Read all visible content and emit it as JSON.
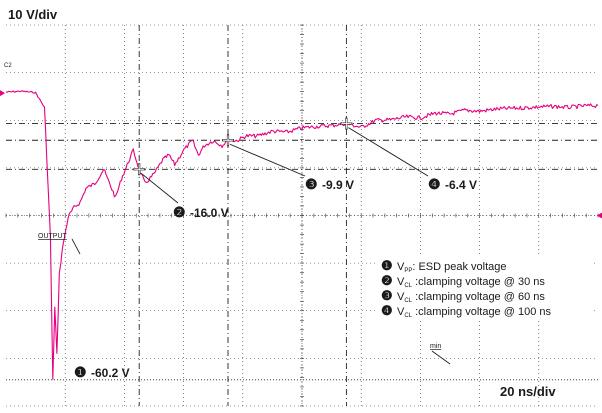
{
  "chart_data": {
    "type": "line",
    "title": "",
    "xlabel": "",
    "ylabel": "",
    "y_scale_label": "10 V/div",
    "x_scale_label": "20 ns/div",
    "channel_label": "C2",
    "output_label": "OUTPUT",
    "min_label": "min",
    "x_divisions": 10,
    "y_divisions": 8,
    "x_unit": "ns",
    "y_unit": "V",
    "xlim": [
      -15,
      185
    ],
    "ylim": [
      -65.7,
      14.3
    ],
    "grid": true,
    "series": [
      {
        "color": "#e6007e",
        "x": [
          -15,
          -10,
          -5,
          -2,
          0,
          0.8,
          1.5,
          2.2,
          3,
          4,
          6,
          8,
          10,
          12,
          15,
          18,
          20,
          22,
          24,
          26,
          28,
          30,
          32,
          35,
          38,
          40,
          42,
          45,
          48,
          50,
          52,
          55,
          58,
          60,
          63,
          66,
          70,
          75,
          80,
          85,
          90,
          95,
          100,
          105,
          110,
          115,
          120,
          125,
          130,
          135,
          140,
          145,
          150,
          155,
          160,
          165,
          170,
          175,
          180,
          185
        ],
        "y": [
          0.2,
          0.4,
          0.1,
          -3,
          -30,
          -60.2,
          -45,
          -55,
          -38,
          -33,
          -26,
          -24,
          -23,
          -20,
          -19,
          -16,
          -19,
          -22,
          -18,
          -15,
          -12,
          -16.0,
          -19,
          -17,
          -14,
          -13,
          -15,
          -12,
          -10,
          -13,
          -11,
          -10,
          -11,
          -9.9,
          -10,
          -9,
          -9,
          -8,
          -8.2,
          -7.3,
          -7,
          -6.8,
          -6.4,
          -7.2,
          -5.7,
          -5.6,
          -5,
          -5.2,
          -4.2,
          -4.4,
          -3.6,
          -3.8,
          -3.4,
          -3.2,
          -3.1,
          -2.9,
          -2.8,
          -3,
          -2.7,
          -2.6
        ]
      }
    ],
    "markers": [
      {
        "number": "❶",
        "x": 0.8,
        "y": -60.2,
        "label": "-60.2 V"
      },
      {
        "number": "❷",
        "x": 30,
        "y": -16.0,
        "label": "-16.0 V"
      },
      {
        "number": "❸",
        "x": 60,
        "y": -9.9,
        "label": "-9.9 V"
      },
      {
        "number": "❹",
        "x": 100,
        "y": -6.4,
        "label": "-6.4 V"
      }
    ],
    "legend_entries": [
      {
        "number": "❶",
        "symbol": "V",
        "sub": "PP",
        "text": ": ESD peak voltage"
      },
      {
        "number": "❷",
        "symbol": "V",
        "sub": "CL",
        "text": " :clamping voltage @ 30 ns"
      },
      {
        "number": "❸",
        "symbol": "V",
        "sub": "CL",
        "text": " :clamping voltage @ 60 ns"
      },
      {
        "number": "❹",
        "symbol": "V",
        "sub": "CL",
        "text": " :clamping voltage @ 100 ns"
      }
    ],
    "legend_position": "bottom-right",
    "colors": {
      "trace": "#e6007e",
      "grid": "#333333",
      "background": "#ffffff",
      "text": "#1a1a1a"
    }
  }
}
